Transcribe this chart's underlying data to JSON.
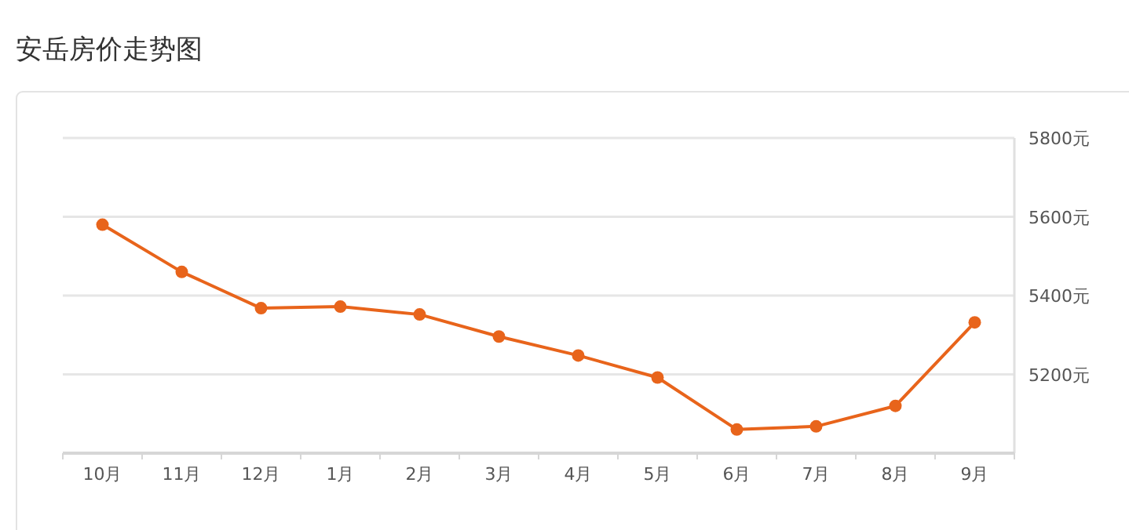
{
  "chart_data": {
    "type": "line",
    "title": "安岳房价走势图",
    "categories": [
      "10月",
      "11月",
      "12月",
      "1月",
      "2月",
      "3月",
      "4月",
      "5月",
      "6月",
      "7月",
      "8月",
      "9月"
    ],
    "series": [
      {
        "color": "#e8641b",
        "values": [
          5580,
          5460,
          5368,
          5372,
          5352,
          5296,
          5248,
          5192,
          5060,
          5068,
          5120,
          5332
        ]
      }
    ],
    "ylim": [
      5000,
      5800
    ],
    "yticks": [
      {
        "value": 5200,
        "label": "5200元"
      },
      {
        "value": 5400,
        "label": "5400元"
      },
      {
        "value": 5600,
        "label": "5600元"
      },
      {
        "value": 5800,
        "label": "5800元"
      }
    ],
    "grid": "y",
    "marker": "circle"
  }
}
